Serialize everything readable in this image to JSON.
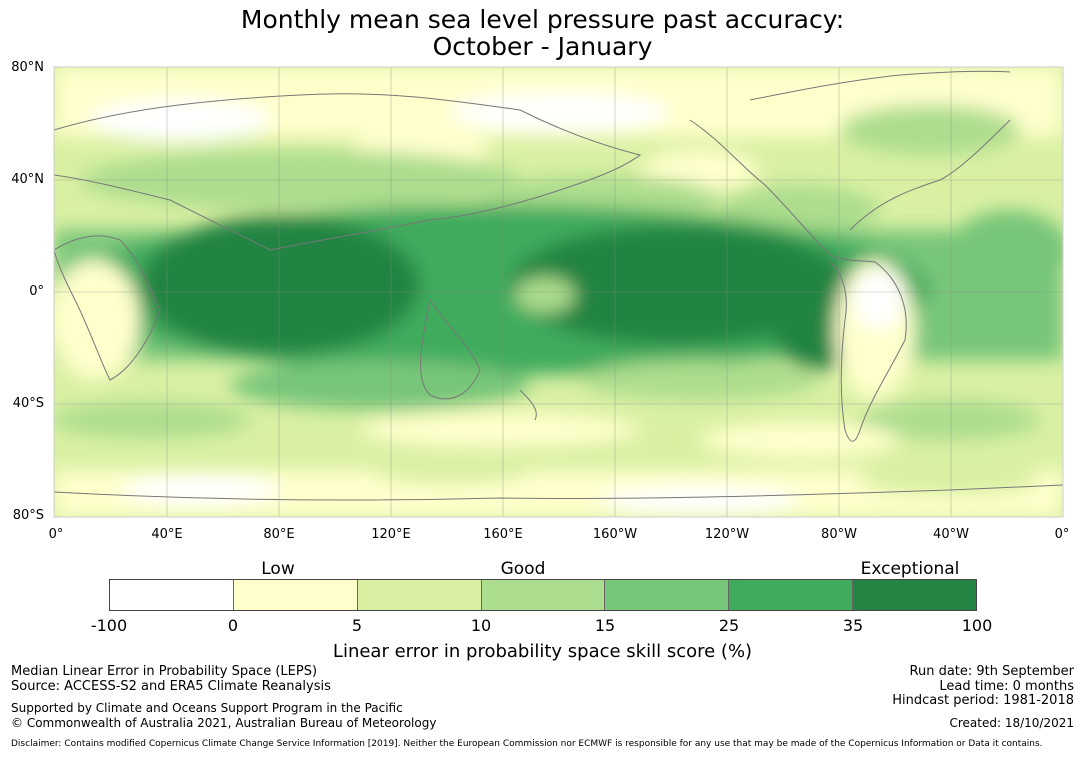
{
  "title": {
    "line1": "Monthly mean sea level pressure past accuracy:",
    "line2": "October - January"
  },
  "map": {
    "lat_labels": [
      "80°N",
      "40°N",
      "0°",
      "40°S",
      "80°S"
    ],
    "lon_labels": [
      "0°",
      "40°E",
      "80°E",
      "120°E",
      "160°E",
      "160°W",
      "120°W",
      "80°W",
      "40°W",
      "0°"
    ],
    "grid": true
  },
  "legend": {
    "categories": {
      "low": "Low",
      "good": "Good",
      "exceptional": "Exceptional"
    },
    "colors": [
      "#ffffff",
      "#ffffcc",
      "#d9f0a3",
      "#addd8e",
      "#78c679",
      "#41ab5d",
      "#238443"
    ],
    "ticks": [
      "-100",
      "0",
      "5",
      "10",
      "15",
      "25",
      "35",
      "100"
    ],
    "label": "Linear error in probability space skill score (%)"
  },
  "footer": {
    "left_line1": "Median Linear Error in Probability Space (LEPS)",
    "left_line2": "Source: ACCESS-S2 and ERA5 Climate Reanalysis",
    "support_line1": "Supported by Climate and Oceans Support Program in the Pacific",
    "support_line2": "© Commonwealth of Australia 2021, Australian Bureau of Meteorology",
    "run_date": "Run date: 9th September",
    "lead_time": "Lead time: 0 months",
    "hindcast": "Hindcast period: 1981-2018",
    "created": "Created: 18/10/2021",
    "disclaimer": "Disclaimer: Contains modified Copernicus Climate Change Service Information [2019]. Neither the European Commission nor ECMWF is responsible for any use that may be made of the Copernicus Information or Data it contains."
  }
}
